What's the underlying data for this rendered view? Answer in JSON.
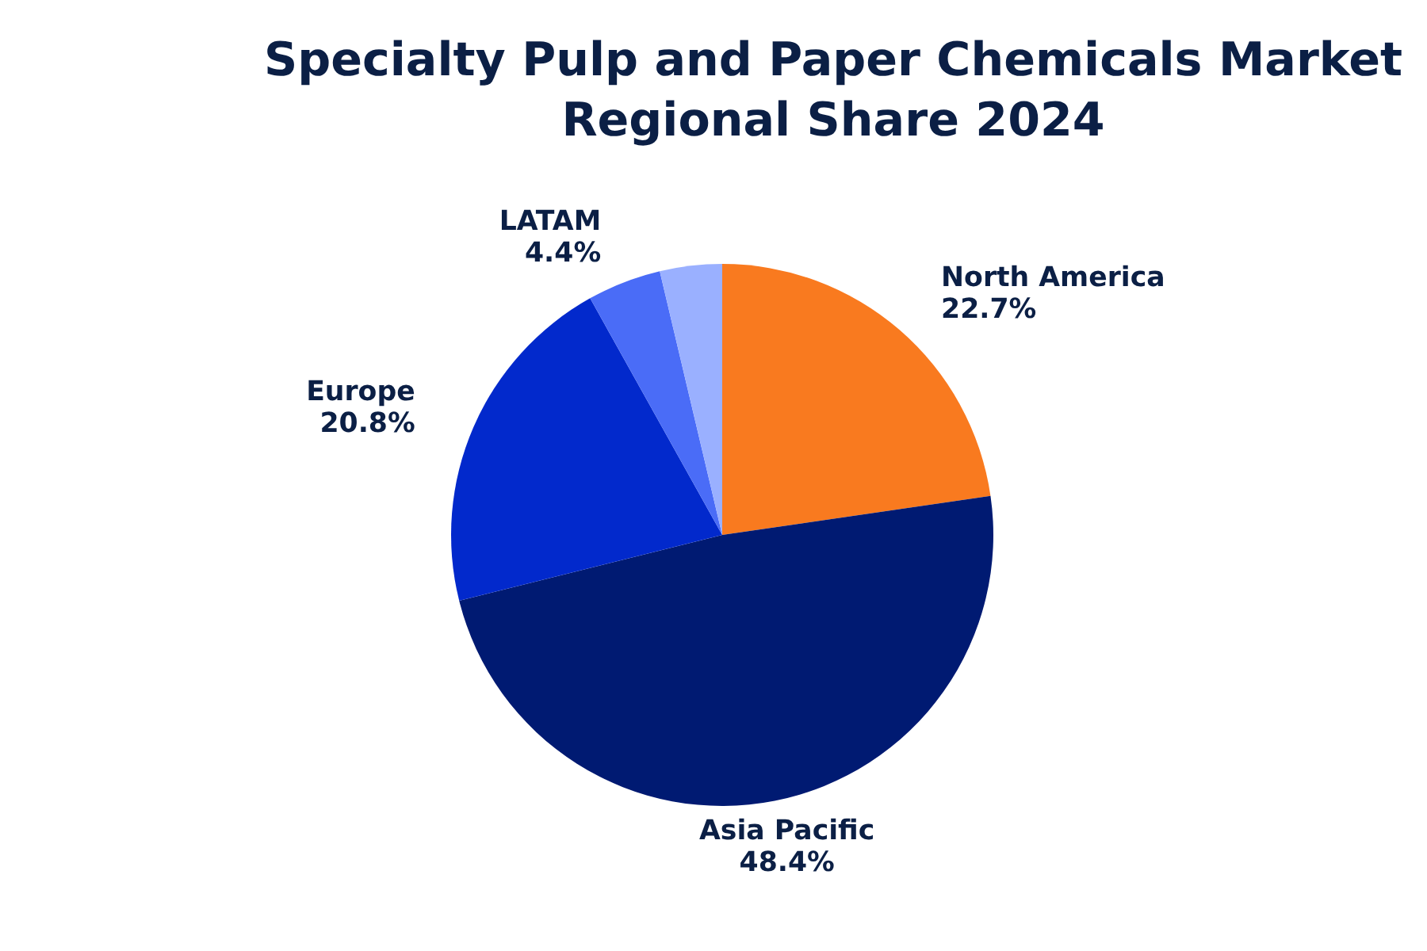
{
  "chart_data": {
    "type": "pie",
    "title": "Specialty Pulp and Paper Chemicals Market Regional Share 2024",
    "categories": [
      "North America",
      "Asia Pacific",
      "Europe",
      "LATAM",
      null
    ],
    "values": [
      22.7,
      48.4,
      20.8,
      4.4,
      3.7
    ],
    "colors": [
      "#f97a1f",
      "#001a72",
      "#0229cc",
      "#4a6cf7",
      "#9ab0ff"
    ],
    "value_labels": [
      "22.7%",
      "48.4%",
      "20.8%",
      "4.4%",
      null
    ]
  }
}
